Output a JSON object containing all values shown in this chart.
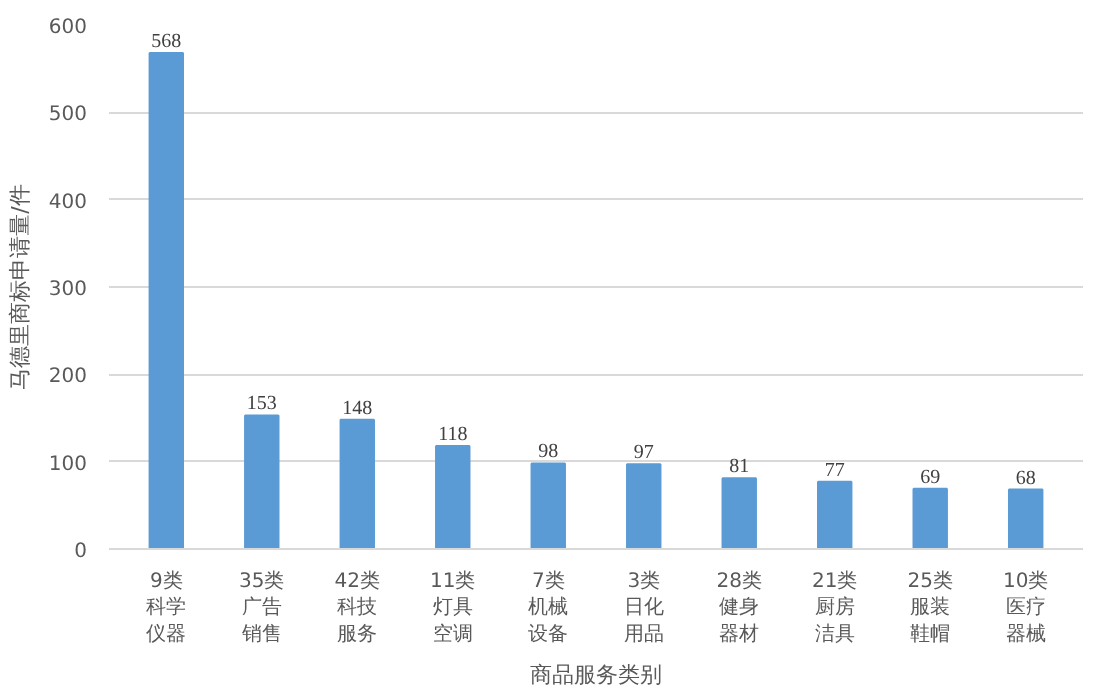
{
  "chart_data": {
    "type": "bar",
    "xlabel": "商品服务类别",
    "ylabel": "马德里商标申请量/件",
    "categories": [
      "9类科学仪器",
      "35类广告销售",
      "42类科技服务",
      "11类灯具空调",
      "7类机械设备",
      "3类日化用品",
      "28类健身器材",
      "21类厨房洁具",
      "25类服装鞋帽",
      "10类医疗器械"
    ],
    "values": [
      568,
      153,
      148,
      118,
      98,
      97,
      81,
      77,
      69,
      68
    ],
    "color": "#5b9bd5",
    "ylim": [
      0,
      600
    ],
    "yticks": [
      0,
      100,
      200,
      300,
      400,
      500,
      600
    ],
    "grid": "y",
    "data_labels": true
  }
}
